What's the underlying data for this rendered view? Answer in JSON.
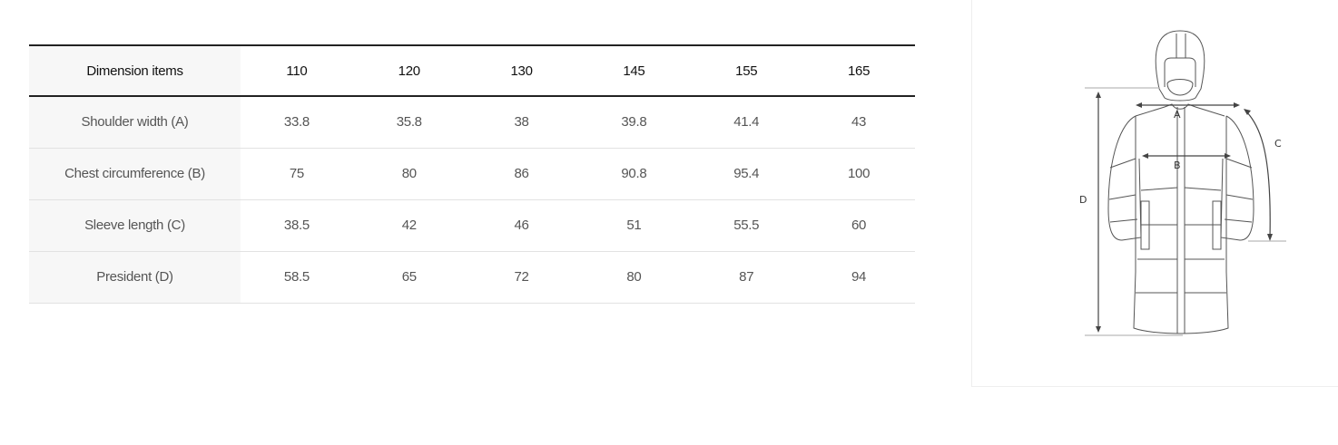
{
  "table": {
    "header": [
      "Dimension items",
      "110",
      "120",
      "130",
      "145",
      "155",
      "165"
    ],
    "rows": [
      {
        "label": "Shoulder width (A)",
        "values": [
          "33.8",
          "35.8",
          "38",
          "39.8",
          "41.4",
          "43"
        ]
      },
      {
        "label": "Chest circumference (B)",
        "values": [
          "75",
          "80",
          "86",
          "90.8",
          "95.4",
          "100"
        ]
      },
      {
        "label": "Sleeve length (C)",
        "values": [
          "38.5",
          "42",
          "46",
          "51",
          "55.5",
          "60"
        ]
      },
      {
        "label": "President (D)",
        "values": [
          "58.5",
          "65",
          "72",
          "80",
          "87",
          "94"
        ]
      }
    ]
  },
  "diagram": {
    "labels": {
      "a": "A",
      "b": "B",
      "c": "C",
      "d": "D"
    }
  }
}
